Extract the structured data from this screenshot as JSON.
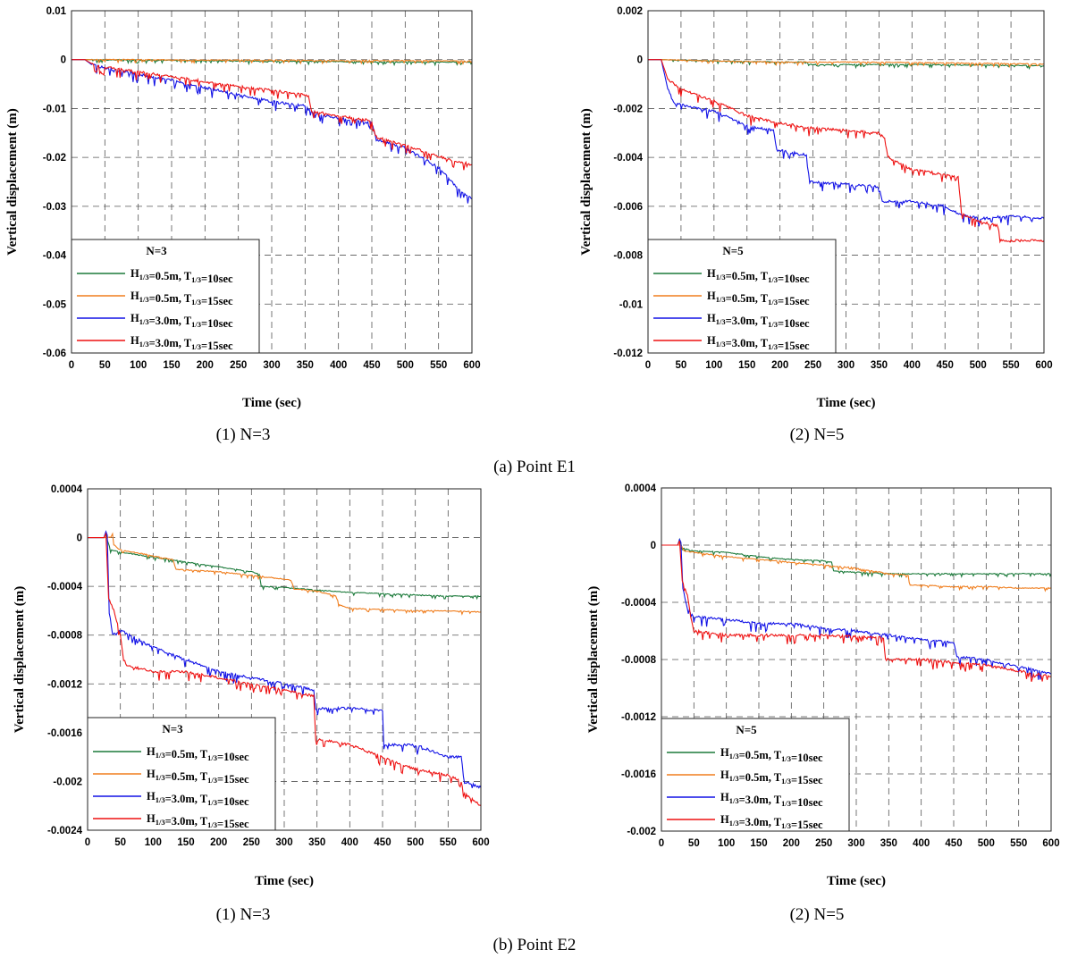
{
  "colors": {
    "green": "#1b7a3a",
    "orange": "#f07e1e",
    "blue": "#1212e6",
    "red": "#ee1111"
  },
  "captions": {
    "group_a": "(a)  Point  E1",
    "group_b": "(b)  Point  E2",
    "panel_a1": "(1)  N=3",
    "panel_a2": "(2)  N=5",
    "panel_b1": "(1)  N=3",
    "panel_b2": "(2)  N=5"
  },
  "chart_data": [
    {
      "id": "a1",
      "type": "line",
      "point": "E1",
      "xlabel": "Time (sec)",
      "ylabel": "Vertical displacement (m)",
      "xlim": [
        0,
        600
      ],
      "ylim": [
        -0.06,
        0.01
      ],
      "xticks": [
        "0",
        "50",
        "100",
        "150",
        "200",
        "250",
        "300",
        "350",
        "400",
        "450",
        "500",
        "550",
        "600"
      ],
      "yticks": [
        "0.01",
        "0",
        "-0.01",
        "-0.02",
        "-0.03",
        "-0.04",
        "-0.05",
        "-0.06"
      ],
      "legend": {
        "title": "N=3",
        "placement": "bottom-left"
      },
      "series": [
        {
          "name": "H1/3=0.5m, T1/3=10sec",
          "color": "green",
          "x": [
            0,
            20,
            100,
            200,
            300,
            400,
            500,
            600
          ],
          "y": [
            0,
            0,
            -0.0001,
            -0.0002,
            -0.0003,
            -0.0004,
            -0.0005,
            -0.0005
          ]
        },
        {
          "name": "H1/3=0.5m, T1/3=15sec",
          "color": "orange",
          "x": [
            0,
            20,
            100,
            200,
            300,
            400,
            500,
            600
          ],
          "y": [
            0,
            0,
            0,
            -0.0001,
            -0.0001,
            -0.0002,
            -0.0002,
            -0.0003
          ]
        },
        {
          "name": "H1/3=3.0m, T1/3=10sec",
          "color": "blue",
          "x": [
            0,
            20,
            30,
            50,
            80,
            100,
            150,
            200,
            250,
            300,
            350,
            358,
            362,
            400,
            450,
            455,
            460,
            500,
            550,
            580,
            600
          ],
          "y": [
            0,
            0,
            -0.001,
            -0.0017,
            -0.0025,
            -0.003,
            -0.0042,
            -0.0057,
            -0.0072,
            -0.0086,
            -0.0095,
            -0.0105,
            -0.011,
            -0.012,
            -0.013,
            -0.0155,
            -0.0165,
            -0.018,
            -0.022,
            -0.0265,
            -0.0285
          ]
        },
        {
          "name": "H1/3=3.0m, T1/3=15sec",
          "color": "red",
          "x": [
            0,
            20,
            30,
            50,
            100,
            150,
            200,
            250,
            300,
            350,
            355,
            360,
            400,
            450,
            455,
            460,
            500,
            550,
            600
          ],
          "y": [
            0,
            0,
            -0.0008,
            -0.0015,
            -0.0025,
            -0.0035,
            -0.0045,
            -0.0055,
            -0.0063,
            -0.0072,
            -0.0075,
            -0.0105,
            -0.0115,
            -0.0125,
            -0.0155,
            -0.016,
            -0.0175,
            -0.0198,
            -0.0215
          ]
        }
      ]
    },
    {
      "id": "a2",
      "type": "line",
      "point": "E1",
      "xlabel": "Time (sec)",
      "ylabel": "Vertical displacement (m)",
      "xlim": [
        0,
        600
      ],
      "ylim": [
        -0.012,
        0.002
      ],
      "xticks": [
        "0",
        "50",
        "100",
        "150",
        "200",
        "250",
        "300",
        "350",
        "400",
        "450",
        "500",
        "550",
        "600"
      ],
      "yticks": [
        "0.002",
        "0",
        "-0.002",
        "-0.004",
        "-0.006",
        "-0.008",
        "-0.01",
        "-0.012"
      ],
      "legend": {
        "title": "N=5",
        "placement": "bottom-left"
      },
      "series": [
        {
          "name": "H1/3=0.5m, T1/3=10sec",
          "color": "green",
          "x": [
            0,
            20,
            100,
            200,
            240,
            245,
            300,
            400,
            500,
            600
          ],
          "y": [
            0,
            0,
            -5e-05,
            -0.0001,
            -0.0001,
            -0.0002,
            -0.0002,
            -0.0002,
            -0.00022,
            -0.00025
          ]
        },
        {
          "name": "H1/3=0.5m, T1/3=15sec",
          "color": "orange",
          "x": [
            0,
            20,
            100,
            200,
            300,
            400,
            500,
            600
          ],
          "y": [
            0,
            0,
            -5e-05,
            -0.0001,
            -0.0001,
            -0.00012,
            -0.00015,
            -0.00018
          ]
        },
        {
          "name": "H1/3=3.0m, T1/3=10sec",
          "color": "blue",
          "x": [
            0,
            20,
            25,
            30,
            40,
            100,
            150,
            190,
            195,
            240,
            245,
            300,
            350,
            355,
            400,
            450,
            460,
            500,
            550,
            600
          ],
          "y": [
            0,
            0,
            -0.0006,
            -0.0012,
            -0.0018,
            -0.0021,
            -0.0027,
            -0.0029,
            -0.0037,
            -0.0039,
            -0.005,
            -0.0051,
            -0.0052,
            -0.0058,
            -0.0058,
            -0.006,
            -0.0062,
            -0.0065,
            -0.0064,
            -0.0065
          ]
        },
        {
          "name": "H1/3=3.0m, T1/3=15sec",
          "color": "red",
          "x": [
            0,
            20,
            25,
            30,
            50,
            100,
            150,
            200,
            250,
            300,
            350,
            360,
            365,
            400,
            450,
            470,
            475,
            500,
            530,
            535,
            600
          ],
          "y": [
            0,
            0,
            -0.0004,
            -0.0008,
            -0.0012,
            -0.0017,
            -0.0023,
            -0.0026,
            -0.0028,
            -0.0029,
            -0.003,
            -0.0032,
            -0.004,
            -0.0045,
            -0.0047,
            -0.0048,
            -0.0063,
            -0.0066,
            -0.0068,
            -0.0074,
            -0.0074
          ]
        }
      ]
    },
    {
      "id": "b1",
      "type": "line",
      "point": "E2",
      "xlabel": "Time (sec)",
      "ylabel": "Vertical displacement (m)",
      "xlim": [
        0,
        600
      ],
      "ylim": [
        -0.0024,
        0.0004
      ],
      "xticks": [
        "0",
        "50",
        "100",
        "150",
        "200",
        "250",
        "300",
        "350",
        "400",
        "450",
        "500",
        "550",
        "600"
      ],
      "yticks": [
        "0.0004",
        "0",
        "-0.0004",
        "-0.0008",
        "-0.0012",
        "-0.0016",
        "-0.002",
        "-0.0024"
      ],
      "legend": {
        "title": "N=3",
        "placement": "bottom-left"
      },
      "series": [
        {
          "name": "H1/3=0.5m, T1/3=10sec",
          "color": "green",
          "x": [
            0,
            25,
            28,
            30,
            35,
            50,
            100,
            150,
            200,
            250,
            262,
            265,
            300,
            350,
            400,
            450,
            500,
            550,
            600
          ],
          "y": [
            0,
            0,
            4e-05,
            -2e-05,
            -0.0001,
            -0.00012,
            -0.00016,
            -0.0002,
            -0.00024,
            -0.00028,
            -0.0003,
            -0.0004,
            -0.00041,
            -0.00043,
            -0.00045,
            -0.00046,
            -0.00047,
            -0.00048,
            -0.00048
          ]
        },
        {
          "name": "H1/3=0.5m, T1/3=15sec",
          "color": "orange",
          "x": [
            0,
            35,
            38,
            40,
            50,
            100,
            130,
            135,
            200,
            250,
            300,
            310,
            315,
            350,
            380,
            383,
            400,
            450,
            500,
            550,
            600
          ],
          "y": [
            0,
            0,
            3e-05,
            -6e-05,
            -0.0001,
            -0.00015,
            -0.00018,
            -0.00026,
            -0.00028,
            -0.00031,
            -0.00034,
            -0.00035,
            -0.00042,
            -0.00044,
            -0.00048,
            -0.00055,
            -0.00058,
            -0.00059,
            -0.0006,
            -0.0006,
            -0.00061
          ]
        },
        {
          "name": "H1/3=3.0m, T1/3=10sec",
          "color": "blue",
          "x": [
            0,
            25,
            28,
            30,
            33,
            38,
            45,
            50,
            100,
            150,
            200,
            250,
            300,
            345,
            348,
            400,
            450,
            452,
            500,
            550,
            570,
            575,
            600
          ],
          "y": [
            0,
            0,
            5e-05,
            2e-05,
            -0.0006,
            -0.0008,
            -0.00078,
            -0.00076,
            -0.0009,
            -0.001,
            -0.0011,
            -0.00115,
            -0.0012,
            -0.00125,
            -0.0014,
            -0.0014,
            -0.00142,
            -0.0017,
            -0.0017,
            -0.0018,
            -0.0018,
            -0.002,
            -0.00205
          ]
        },
        {
          "name": "H1/3=3.0m, T1/3=15sec",
          "color": "red",
          "x": [
            0,
            25,
            28,
            32,
            40,
            50,
            55,
            60,
            100,
            150,
            200,
            250,
            300,
            345,
            348,
            400,
            450,
            500,
            550,
            570,
            575,
            600
          ],
          "y": [
            0,
            0,
            3e-05,
            -0.0005,
            -0.0006,
            -0.0008,
            -0.001,
            -0.00105,
            -0.0011,
            -0.0011,
            -0.00115,
            -0.0012,
            -0.00125,
            -0.0013,
            -0.00165,
            -0.0017,
            -0.0018,
            -0.0019,
            -0.00195,
            -0.002,
            -0.0021,
            -0.0022
          ]
        }
      ]
    },
    {
      "id": "b2",
      "type": "line",
      "point": "E2",
      "xlabel": "Time (sec)",
      "ylabel": "Vertical displacement (m)",
      "xlim": [
        0,
        600
      ],
      "ylim": [
        -0.002,
        0.0004
      ],
      "xticks": [
        "0",
        "50",
        "100",
        "150",
        "200",
        "250",
        "300",
        "350",
        "400",
        "450",
        "500",
        "550",
        "600"
      ],
      "yticks": [
        "0.0004",
        "0",
        "-0.0004",
        "-0.0008",
        "-0.0012",
        "-0.0016",
        "-0.002"
      ],
      "legend": {
        "title": "N=5",
        "placement": "bottom-left"
      },
      "series": [
        {
          "name": "H1/3=0.5m, T1/3=10sec",
          "color": "green",
          "x": [
            0,
            25,
            28,
            32,
            50,
            100,
            150,
            200,
            250,
            262,
            265,
            300,
            350,
            400,
            450,
            500,
            550,
            600
          ],
          "y": [
            0,
            0,
            4e-05,
            -2e-05,
            -4e-05,
            -5e-05,
            -8e-05,
            -0.0001,
            -0.00011,
            -0.00012,
            -0.00018,
            -0.00019,
            -0.0002,
            -0.0002,
            -0.0002,
            -0.0002,
            -0.0002,
            -0.0002
          ]
        },
        {
          "name": "H1/3=0.5m, T1/3=15sec",
          "color": "orange",
          "x": [
            0,
            30,
            35,
            50,
            100,
            150,
            200,
            250,
            300,
            350,
            380,
            383,
            400,
            450,
            500,
            550,
            600
          ],
          "y": [
            0,
            0,
            -4e-05,
            -5e-05,
            -8e-05,
            -0.0001,
            -0.00012,
            -0.00014,
            -0.00016,
            -0.0002,
            -0.00021,
            -0.00028,
            -0.00028,
            -0.00029,
            -0.00029,
            -0.0003,
            -0.0003
          ]
        },
        {
          "name": "H1/3=3.0m, T1/3=10sec",
          "color": "blue",
          "x": [
            0,
            25,
            28,
            30,
            33,
            40,
            50,
            100,
            150,
            200,
            250,
            300,
            350,
            400,
            450,
            455,
            500,
            550,
            600
          ],
          "y": [
            0,
            0,
            4e-05,
            2e-05,
            -0.0003,
            -0.00045,
            -0.0005,
            -0.00052,
            -0.00055,
            -0.00055,
            -0.00058,
            -0.0006,
            -0.00063,
            -0.00066,
            -0.00068,
            -0.00078,
            -0.0008,
            -0.00085,
            -0.0009
          ]
        },
        {
          "name": "H1/3=3.0m, T1/3=15sec",
          "color": "red",
          "x": [
            0,
            25,
            28,
            32,
            40,
            45,
            50,
            100,
            150,
            200,
            250,
            300,
            342,
            345,
            400,
            450,
            500,
            550,
            600
          ],
          "y": [
            0,
            0,
            3e-05,
            -0.00025,
            -0.00035,
            -0.0005,
            -0.0006,
            -0.00063,
            -0.00063,
            -0.00063,
            -0.00063,
            -0.00064,
            -0.00065,
            -0.0008,
            -0.0008,
            -0.00082,
            -0.00084,
            -0.00088,
            -0.00092
          ]
        }
      ]
    }
  ]
}
